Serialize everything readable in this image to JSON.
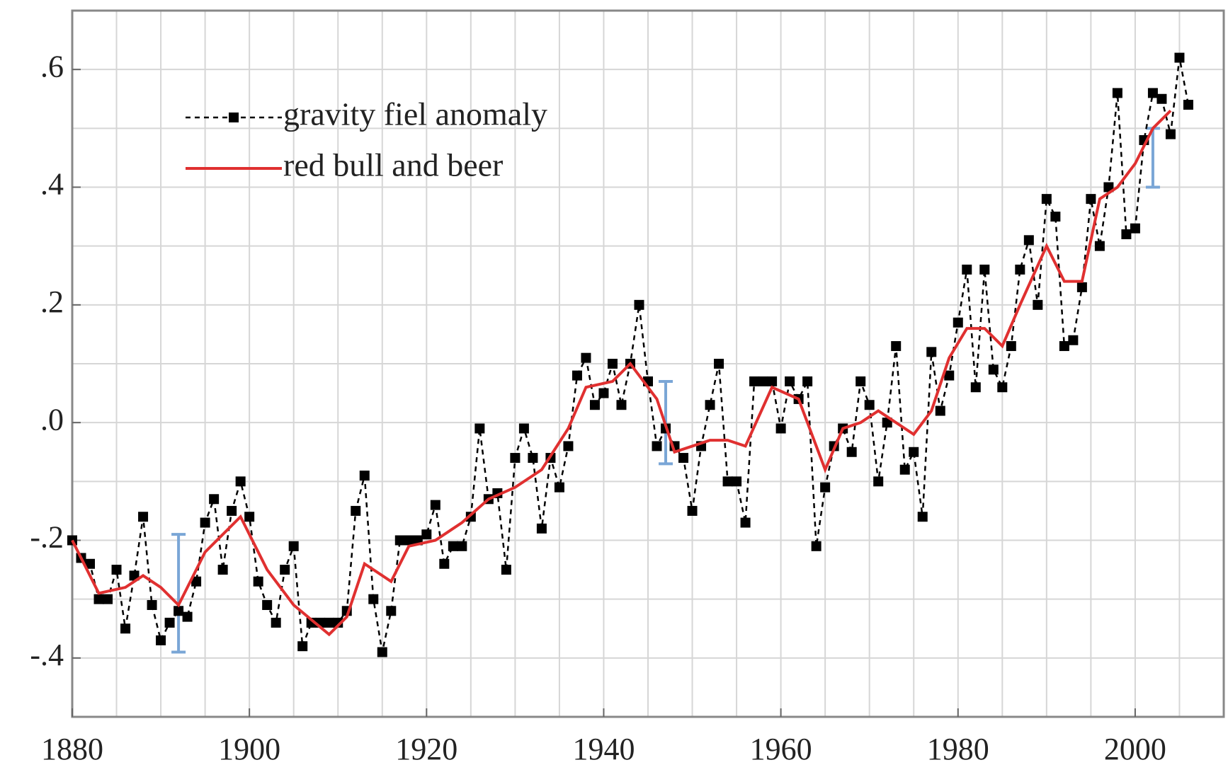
{
  "chart_data": {
    "type": "line",
    "xlim": [
      1880,
      2010
    ],
    "ylim": [
      -0.5,
      0.7
    ],
    "xticks": [
      1880,
      1900,
      1920,
      1940,
      1960,
      1980,
      2000
    ],
    "yticks": [
      {
        "value": 0.6,
        "label": ".6"
      },
      {
        "value": 0.4,
        "label": ".4"
      },
      {
        "value": 0.2,
        "label": ".2"
      },
      {
        "value": 0,
        "label": ".0"
      },
      {
        "value": -0.2,
        "label": "-.2"
      },
      {
        "value": -0.4,
        "label": "-.4"
      }
    ],
    "x_grid": [
      1880,
      1885,
      1890,
      1895,
      1900,
      1905,
      1910,
      1915,
      1920,
      1925,
      1930,
      1935,
      1940,
      1945,
      1950,
      1955,
      1960,
      1965,
      1970,
      1975,
      1980,
      1985,
      1990,
      1995,
      2000,
      2005,
      2010
    ],
    "y_grid": [
      -0.5,
      -0.4,
      -0.3,
      -0.2,
      -0.1,
      0,
      0.1,
      0.2,
      0.3,
      0.4,
      0.5,
      0.6,
      0.7
    ],
    "grid": true,
    "legend": "upper left",
    "series": [
      {
        "name": "gravity fiel anomaly",
        "color": "#000000",
        "style": "dashed-markers",
        "x": [
          1880,
          1881,
          1882,
          1883,
          1884,
          1885,
          1886,
          1887,
          1888,
          1889,
          1890,
          1891,
          1892,
          1893,
          1894,
          1895,
          1896,
          1897,
          1898,
          1899,
          1900,
          1901,
          1902,
          1903,
          1904,
          1905,
          1906,
          1907,
          1908,
          1909,
          1910,
          1911,
          1912,
          1913,
          1914,
          1915,
          1916,
          1917,
          1918,
          1919,
          1920,
          1921,
          1922,
          1923,
          1924,
          1925,
          1926,
          1927,
          1928,
          1929,
          1930,
          1931,
          1932,
          1933,
          1934,
          1935,
          1936,
          1937,
          1938,
          1939,
          1940,
          1941,
          1942,
          1943,
          1944,
          1945,
          1946,
          1947,
          1948,
          1949,
          1950,
          1951,
          1952,
          1953,
          1954,
          1955,
          1956,
          1957,
          1958,
          1959,
          1960,
          1961,
          1962,
          1963,
          1964,
          1965,
          1966,
          1967,
          1968,
          1969,
          1970,
          1971,
          1972,
          1973,
          1974,
          1975,
          1976,
          1977,
          1978,
          1979,
          1980,
          1981,
          1982,
          1983,
          1984,
          1985,
          1986,
          1987,
          1988,
          1989,
          1990,
          1991,
          1992,
          1993,
          1994,
          1995,
          1996,
          1997,
          1998,
          1999,
          2000,
          2001,
          2002,
          2003,
          2004,
          2005,
          2006
        ],
        "values": [
          -0.2,
          -0.23,
          -0.24,
          -0.3,
          -0.3,
          -0.25,
          -0.35,
          -0.26,
          -0.16,
          -0.31,
          -0.37,
          -0.34,
          -0.32,
          -0.33,
          -0.27,
          -0.17,
          -0.13,
          -0.25,
          -0.15,
          -0.1,
          -0.16,
          -0.27,
          -0.31,
          -0.34,
          -0.25,
          -0.21,
          -0.38,
          -0.34,
          -0.34,
          -0.34,
          -0.34,
          -0.32,
          -0.15,
          -0.09,
          -0.3,
          -0.39,
          -0.32,
          -0.2,
          -0.2,
          -0.2,
          -0.19,
          -0.14,
          -0.24,
          -0.21,
          -0.21,
          -0.16,
          -0.01,
          -0.13,
          -0.12,
          -0.25,
          -0.06,
          -0.01,
          -0.06,
          -0.18,
          -0.06,
          -0.11,
          -0.04,
          0.08,
          0.11,
          0.03,
          0.05,
          0.1,
          0.03,
          0.1,
          0.2,
          0.07,
          -0.04,
          -0.01,
          -0.04,
          -0.06,
          -0.15,
          -0.04,
          0.03,
          0.1,
          -0.1,
          -0.1,
          -0.17,
          0.07,
          0.07,
          0.07,
          -0.01,
          0.07,
          0.04,
          0.07,
          -0.21,
          -0.11,
          -0.04,
          -0.01,
          -0.05,
          0.07,
          0.03,
          -0.1,
          0.0,
          0.13,
          -0.08,
          -0.05,
          -0.16,
          0.12,
          0.02,
          0.08,
          0.17,
          0.26,
          0.06,
          0.26,
          0.09,
          0.06,
          0.13,
          0.26,
          0.31,
          0.2,
          0.38,
          0.35,
          0.13,
          0.14,
          0.23,
          0.38,
          0.3,
          0.4,
          0.56,
          0.32,
          0.33,
          0.48,
          0.56,
          0.55,
          0.49,
          0.62,
          0.54
        ]
      },
      {
        "name": "red bull and beer",
        "color": "#e03030",
        "style": "solid",
        "x": [
          1880,
          1883,
          1886,
          1888,
          1890,
          1892,
          1895,
          1899,
          1902,
          1905,
          1909,
          1911,
          1913,
          1916,
          1918,
          1921,
          1924,
          1927,
          1930,
          1933,
          1936,
          1938,
          1941,
          1943,
          1946,
          1948,
          1950,
          1952,
          1954,
          1956,
          1959,
          1962,
          1965,
          1967,
          1969,
          1971,
          1973,
          1975,
          1977,
          1979,
          1981,
          1983,
          1985,
          1987,
          1990,
          1992,
          1994,
          1996,
          1998,
          2000,
          2002,
          2004
        ],
        "values": [
          -0.2,
          -0.29,
          -0.28,
          -0.26,
          -0.28,
          -0.31,
          -0.22,
          -0.16,
          -0.25,
          -0.31,
          -0.36,
          -0.33,
          -0.24,
          -0.27,
          -0.21,
          -0.2,
          -0.17,
          -0.13,
          -0.11,
          -0.08,
          -0.01,
          0.06,
          0.07,
          0.1,
          0.04,
          -0.05,
          -0.04,
          -0.03,
          -0.03,
          -0.04,
          0.06,
          0.04,
          -0.08,
          -0.01,
          0.0,
          0.02,
          0.0,
          -0.02,
          0.02,
          0.11,
          0.16,
          0.16,
          0.13,
          0.2,
          0.3,
          0.24,
          0.24,
          0.38,
          0.4,
          0.44,
          0.5,
          0.53
        ]
      }
    ],
    "error_bars": {
      "color": "#7aa6d6",
      "x": [
        1892,
        1947,
        2002
      ],
      "values": [
        -0.29,
        0.0,
        0.45
      ],
      "errors": [
        0.1,
        0.07,
        0.05
      ]
    }
  }
}
